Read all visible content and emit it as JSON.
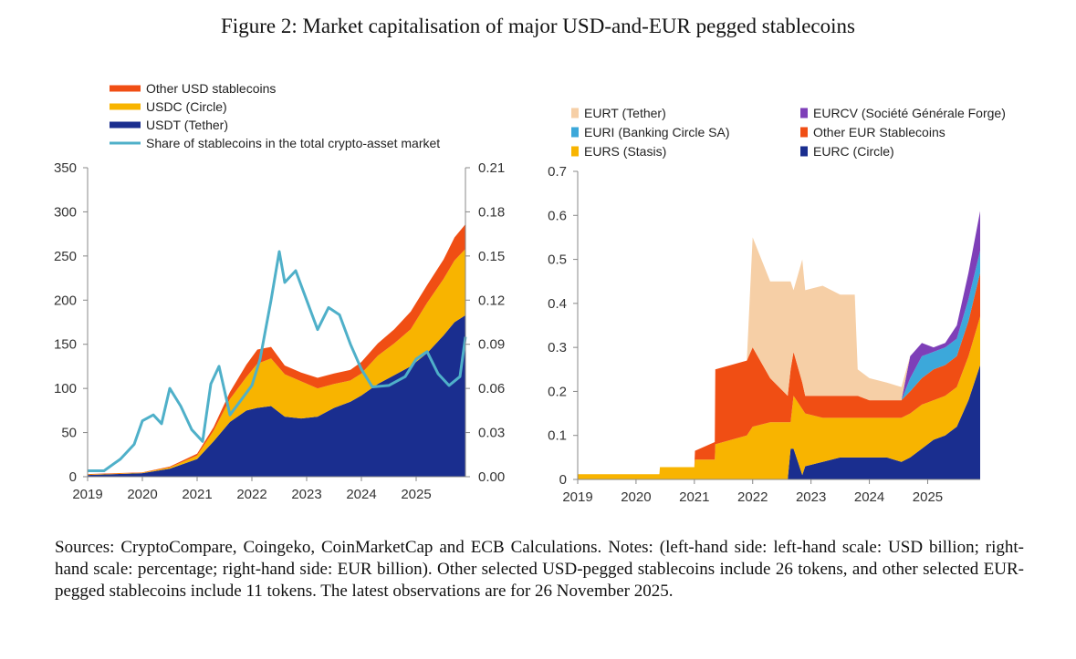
{
  "figure": {
    "title": "Figure 2: Market capitalisation of major USD-and-EUR pegged stablecoins",
    "notes": "Sources: CryptoCompare, Coingeko, CoinMarketCap and ECB Calculations. Notes: (left-hand side: left-hand scale: USD billion; right-hand scale: percentage; right-hand side: EUR billion). Other selected USD-pegged stablecoins include 26 tokens, and other selected EUR-pegged stablecoins include 11 tokens. The latest observations are for 26 November 2025."
  },
  "chart_data": [
    {
      "id": "usd",
      "type": "area",
      "title": "",
      "xlabel": "",
      "ylabel": "USD billion",
      "y2label": "percentage",
      "xlim": [
        2019.0,
        2025.9
      ],
      "ylim": [
        0,
        350
      ],
      "y2lim": [
        0,
        0.21
      ],
      "x_ticks": [
        "2019",
        "2020",
        "2021",
        "2022",
        "2023",
        "2024",
        "2025"
      ],
      "y_ticks": [
        "0",
        "50",
        "100",
        "150",
        "200",
        "250",
        "300",
        "350"
      ],
      "y2_ticks": [
        "0.00",
        "0.03",
        "0.06",
        "0.09",
        "0.12",
        "0.15",
        "0.18",
        "0.21"
      ],
      "legend": [
        {
          "label": "Other USD stablecoins",
          "color": "#F04E14"
        },
        {
          "label": "USDC (Circle)",
          "color": "#F8B400"
        },
        {
          "label": "USDT (Tether)",
          "color": "#1A2E8F"
        },
        {
          "label": "Share of stablecoins in the total crypto-asset market",
          "color": "#4FB0C9"
        }
      ],
      "x": [
        2019.0,
        2019.5,
        2020.0,
        2020.5,
        2021.0,
        2021.3,
        2021.6,
        2021.9,
        2022.1,
        2022.35,
        2022.6,
        2022.9,
        2023.2,
        2023.5,
        2023.8,
        2024.0,
        2024.3,
        2024.6,
        2024.9,
        2025.2,
        2025.5,
        2025.7,
        2025.9
      ],
      "series": [
        {
          "name": "USDT (Tether)",
          "color": "#1A2E8F",
          "values": [
            2,
            3,
            4,
            9,
            20,
            40,
            62,
            75,
            78,
            80,
            68,
            66,
            68,
            78,
            85,
            92,
            105,
            115,
            125,
            140,
            160,
            175,
            183
          ]
        },
        {
          "name": "USDC (Circle)",
          "color": "#F8B400",
          "values": [
            0.5,
            0.5,
            0.5,
            1.5,
            4,
            12,
            26,
            38,
            50,
            54,
            48,
            42,
            32,
            27,
            24,
            25,
            32,
            36,
            42,
            57,
            64,
            70,
            75
          ]
        },
        {
          "name": "Other USD stablecoins",
          "color": "#F04E14",
          "values": [
            0.5,
            0.5,
            0.5,
            1,
            2,
            4,
            8,
            14,
            16,
            13,
            10,
            10,
            12,
            12,
            12,
            13,
            14,
            16,
            20,
            20,
            22,
            26,
            28
          ]
        },
        {
          "name": "Share of stablecoins in the total crypto-asset market",
          "color": "#4FB0C9",
          "axis": "right",
          "x": [
            2019.0,
            2019.3,
            2019.6,
            2019.85,
            2020.0,
            2020.2,
            2020.35,
            2020.5,
            2020.7,
            2020.9,
            2021.1,
            2021.25,
            2021.4,
            2021.6,
            2021.8,
            2022.0,
            2022.15,
            2022.35,
            2022.5,
            2022.6,
            2022.8,
            2023.0,
            2023.2,
            2023.4,
            2023.6,
            2023.8,
            2024.0,
            2024.2,
            2024.5,
            2024.8,
            2025.0,
            2025.2,
            2025.4,
            2025.6,
            2025.8,
            2025.9
          ],
          "values": [
            0.004,
            0.004,
            0.012,
            0.022,
            0.038,
            0.042,
            0.036,
            0.06,
            0.048,
            0.032,
            0.024,
            0.063,
            0.075,
            0.042,
            0.052,
            0.062,
            0.08,
            0.12,
            0.153,
            0.132,
            0.14,
            0.12,
            0.1,
            0.115,
            0.11,
            0.09,
            0.073,
            0.061,
            0.062,
            0.068,
            0.08,
            0.085,
            0.07,
            0.062,
            0.068,
            0.095
          ]
        }
      ]
    },
    {
      "id": "eur",
      "type": "area",
      "title": "",
      "xlabel": "",
      "ylabel": "EUR billion",
      "xlim": [
        2019.0,
        2025.9
      ],
      "ylim": [
        0,
        0.7
      ],
      "x_ticks": [
        "2019",
        "2020",
        "2021",
        "2022",
        "2023",
        "2024",
        "2025"
      ],
      "y_ticks": [
        "0",
        "0.1",
        "0.2",
        "0.3",
        "0.4",
        "0.5",
        "0.6",
        "0.7"
      ],
      "legend": [
        {
          "label": "EURT (Tether)",
          "color": "#F6CFA6"
        },
        {
          "label": "EURCV (Société Générale Forge)",
          "color": "#7E3FB8"
        },
        {
          "label": "EURI (Banking Circle SA)",
          "color": "#3CA8DA"
        },
        {
          "label": "Other EUR Stablecoins",
          "color": "#F04E14"
        },
        {
          "label": "EURS (Stasis)",
          "color": "#F8B400"
        },
        {
          "label": "EURC (Circle)",
          "color": "#1A2E8F"
        }
      ],
      "x": [
        2019.0,
        2020.4,
        2020.41,
        2021.0,
        2021.01,
        2021.35,
        2021.36,
        2021.9,
        2022.0,
        2022.3,
        2022.6,
        2022.65,
        2022.7,
        2022.85,
        2022.9,
        2023.2,
        2023.5,
        2023.75,
        2023.8,
        2024.0,
        2024.3,
        2024.55,
        2024.7,
        2024.9,
        2025.1,
        2025.3,
        2025.5,
        2025.7,
        2025.9
      ],
      "series": [
        {
          "name": "EURC (Circle)",
          "color": "#1A2E8F",
          "values": [
            0,
            0,
            0,
            0,
            0,
            0,
            0,
            0,
            0,
            0,
            0,
            0.07,
            0.07,
            0.01,
            0.03,
            0.04,
            0.05,
            0.05,
            0.05,
            0.05,
            0.05,
            0.04,
            0.05,
            0.07,
            0.09,
            0.1,
            0.12,
            0.18,
            0.26
          ]
        },
        {
          "name": "EURS (Stasis)",
          "color": "#F8B400",
          "values": [
            0.012,
            0.012,
            0.028,
            0.028,
            0.045,
            0.045,
            0.08,
            0.1,
            0.12,
            0.13,
            0.13,
            0.06,
            0.12,
            0.15,
            0.12,
            0.1,
            0.09,
            0.09,
            0.09,
            0.09,
            0.09,
            0.1,
            0.1,
            0.1,
            0.09,
            0.09,
            0.09,
            0.1,
            0.11
          ]
        },
        {
          "name": "Other EUR Stablecoins",
          "color": "#F04E14",
          "values": [
            0,
            0,
            0,
            0,
            0.02,
            0.04,
            0.17,
            0.17,
            0.18,
            0.1,
            0.06,
            0.12,
            0.1,
            0.06,
            0.04,
            0.05,
            0.05,
            0.05,
            0.05,
            0.04,
            0.04,
            0.04,
            0.05,
            0.06,
            0.07,
            0.07,
            0.07,
            0.08,
            0.1
          ]
        },
        {
          "name": "EURI (Banking Circle SA)",
          "color": "#3CA8DA",
          "values": [
            0,
            0,
            0,
            0,
            0,
            0,
            0,
            0,
            0,
            0,
            0,
            0,
            0,
            0,
            0,
            0,
            0,
            0,
            0,
            0,
            0,
            0,
            0.03,
            0.05,
            0.04,
            0.04,
            0.04,
            0.05,
            0.05
          ]
        },
        {
          "name": "EURCV (Société Générale Forge)",
          "color": "#7E3FB8",
          "values": [
            0,
            0,
            0,
            0,
            0,
            0,
            0,
            0,
            0,
            0,
            0,
            0,
            0,
            0,
            0,
            0,
            0,
            0,
            0,
            0,
            0,
            0,
            0.05,
            0.03,
            0.01,
            0.01,
            0.03,
            0.06,
            0.09
          ]
        },
        {
          "name": "EURT (Tether)",
          "color": "#F6CFA6",
          "values": [
            0,
            0,
            0,
            0,
            0,
            0,
            0,
            0,
            0.25,
            0.22,
            0.26,
            0.2,
            0.14,
            0.28,
            0.24,
            0.25,
            0.23,
            0.23,
            0.06,
            0.05,
            0.04,
            0.03,
            0,
            0,
            0,
            0,
            0,
            0,
            0
          ]
        }
      ]
    }
  ]
}
